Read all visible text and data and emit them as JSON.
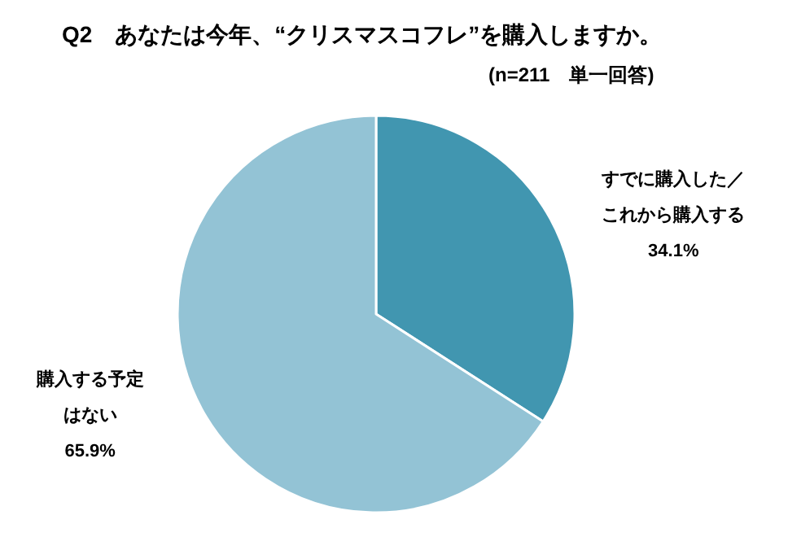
{
  "chart_data": {
    "type": "pie",
    "title": "Q2　あなたは今年、“クリスマスコフレ”を購入しますか。",
    "subtitle": "(n=211　単一回答)",
    "categories": [
      "すでに購入した／これから購入する",
      "購入する予定はない"
    ],
    "values": [
      34.1,
      65.9
    ],
    "colors": [
      "#4196b0",
      "#93c3d5"
    ],
    "value_labels": [
      "34.1%",
      "65.9%"
    ]
  }
}
